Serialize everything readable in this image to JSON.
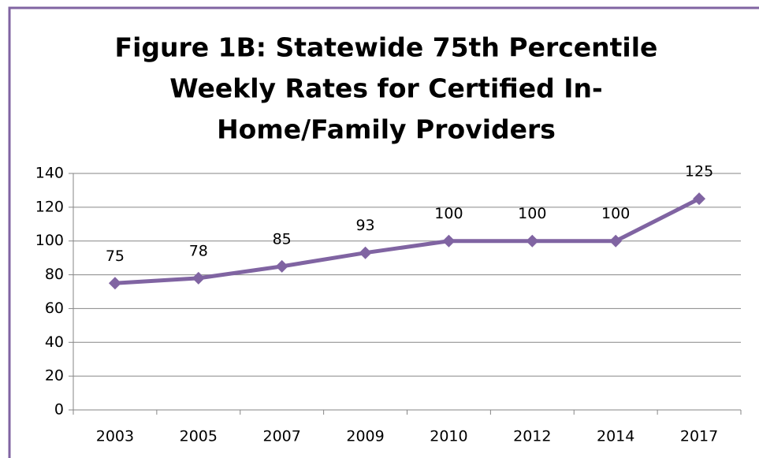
{
  "chart_data": {
    "type": "line",
    "title": [
      "Figure 1B: Statewide 75th Percentile",
      "Weekly Rates for Certified In-",
      "Home/Family Providers"
    ],
    "categories": [
      "2003",
      "2005",
      "2007",
      "2009",
      "2010",
      "2012",
      "2014",
      "2017"
    ],
    "values": [
      75,
      78,
      85,
      93,
      100,
      100,
      100,
      125
    ],
    "color": "#8064a2",
    "ylim": [
      0,
      140
    ],
    "yticks": [
      0,
      20,
      40,
      60,
      80,
      100,
      120,
      140
    ],
    "grid": true
  }
}
